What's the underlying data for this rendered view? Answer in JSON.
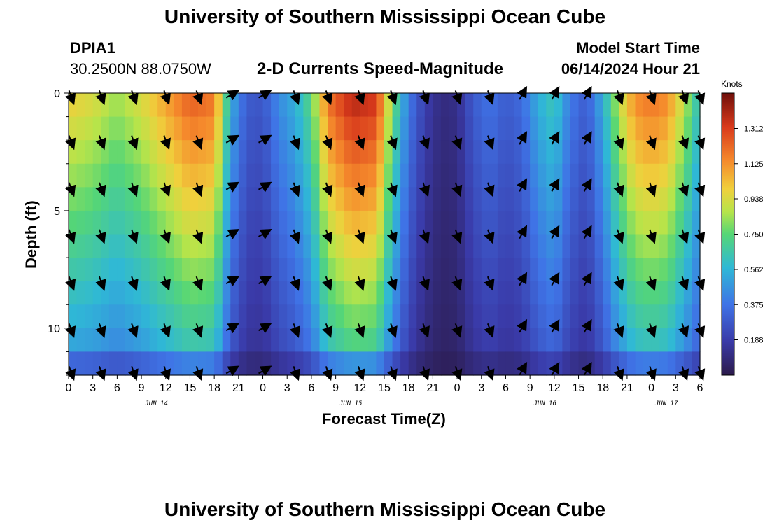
{
  "header": {
    "title": "University of Southern Mississippi Ocean Cube",
    "station": "DPIA1",
    "coords": "30.2500N  88.0750W",
    "subtitle": "2-D Currents Speed-Magnitude",
    "start_label": "Model Start Time",
    "start_value": "06/14/2024 Hour 21"
  },
  "footer": {
    "title": "University of Southern Mississippi Ocean Cube"
  },
  "colorbar": {
    "unit": "Knots",
    "ticks": [
      "1.312",
      "1.125",
      "0.938",
      "0.750",
      "0.562",
      "0.375",
      "0.188"
    ]
  },
  "chart_data": {
    "type": "heatmap",
    "title": "2-D Currents Speed-Magnitude",
    "xlabel": "Forecast Time(Z)",
    "ylabel": "Depth (ft)",
    "x_range_hours": [
      0,
      78
    ],
    "y_range_ft": [
      0,
      12
    ],
    "y_ticks": [
      0,
      5,
      10
    ],
    "x_tick_labels": [
      "0",
      "3",
      "6",
      "9",
      "12",
      "15",
      "18",
      "21",
      "0",
      "3",
      "6",
      "9",
      "12",
      "15",
      "18",
      "21",
      "0",
      "3",
      "6",
      "9",
      "12",
      "15",
      "18",
      "21",
      "0",
      "3",
      "6"
    ],
    "day_labels": [
      {
        "label": "JUN 14",
        "hour": 10
      },
      {
        "label": "JUN 15",
        "hour": 34
      },
      {
        "label": "JUN 16",
        "hour": 58
      },
      {
        "label": "JUN 17",
        "hour": 73
      }
    ],
    "color_scale": {
      "min": 0.0,
      "max": 1.5,
      "unit": "Knots"
    },
    "depth_levels_ft": [
      0,
      1,
      2,
      3,
      4,
      5,
      6,
      7,
      8,
      9,
      10,
      11,
      12
    ],
    "surface_speed_knots": [
      {
        "hour": 0,
        "speed": 1.0
      },
      {
        "hour": 3,
        "speed": 0.95
      },
      {
        "hour": 6,
        "speed": 0.85
      },
      {
        "hour": 9,
        "speed": 0.95
      },
      {
        "hour": 12,
        "speed": 1.1
      },
      {
        "hour": 15,
        "speed": 1.25
      },
      {
        "hour": 18,
        "speed": 1.2
      },
      {
        "hour": 20,
        "speed": 0.55
      },
      {
        "hour": 22,
        "speed": 0.3
      },
      {
        "hour": 24,
        "speed": 0.28
      },
      {
        "hour": 26,
        "speed": 0.45
      },
      {
        "hour": 28,
        "speed": 0.55
      },
      {
        "hour": 30,
        "speed": 0.75
      },
      {
        "hour": 32,
        "speed": 1.2
      },
      {
        "hour": 35,
        "speed": 1.4
      },
      {
        "hour": 38,
        "speed": 1.35
      },
      {
        "hour": 40,
        "speed": 0.8
      },
      {
        "hour": 42,
        "speed": 0.4
      },
      {
        "hour": 44,
        "speed": 0.2
      },
      {
        "hour": 46,
        "speed": 0.1
      },
      {
        "hour": 48,
        "speed": 0.12
      },
      {
        "hour": 50,
        "speed": 0.3
      },
      {
        "hour": 52,
        "speed": 0.38
      },
      {
        "hour": 54,
        "speed": 0.3
      },
      {
        "hour": 56,
        "speed": 0.35
      },
      {
        "hour": 58,
        "speed": 0.55
      },
      {
        "hour": 60,
        "speed": 0.65
      },
      {
        "hour": 62,
        "speed": 0.4
      },
      {
        "hour": 64,
        "speed": 0.3
      },
      {
        "hour": 66,
        "speed": 0.55
      },
      {
        "hour": 68,
        "speed": 0.9
      },
      {
        "hour": 70,
        "speed": 1.15
      },
      {
        "hour": 72,
        "speed": 1.2
      },
      {
        "hour": 74,
        "speed": 1.15
      },
      {
        "hour": 76,
        "speed": 0.9
      },
      {
        "hour": 78,
        "speed": 0.6
      }
    ],
    "vector_rows_ft": [
      0,
      2,
      4,
      6,
      8,
      10,
      12
    ],
    "vector_columns_hours": [
      0,
      4,
      8,
      12,
      16,
      20,
      24,
      28,
      32,
      36,
      40,
      44,
      48,
      52,
      56,
      60,
      64,
      68,
      72,
      76,
      78
    ],
    "vector_directions_deg": [
      160,
      160,
      160,
      160,
      160,
      60,
      60,
      160,
      160,
      160,
      160,
      160,
      160,
      160,
      30,
      30,
      30,
      160,
      160,
      160,
      160
    ]
  }
}
